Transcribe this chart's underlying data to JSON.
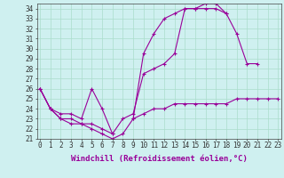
{
  "xlabel": "Windchill (Refroidissement éolien,°C)",
  "background_color": "#cff0f0",
  "grid_color": "#aaddcc",
  "line_color": "#990099",
  "x_ticks": [
    0,
    1,
    2,
    3,
    4,
    5,
    6,
    7,
    8,
    9,
    10,
    11,
    12,
    13,
    14,
    15,
    16,
    17,
    18,
    19,
    20,
    21,
    22,
    23
  ],
  "ylim": [
    21,
    34.5
  ],
  "xlim": [
    -0.3,
    23.3
  ],
  "series": [
    [
      26.0,
      24.0,
      23.0,
      22.5,
      22.5,
      22.0,
      21.5,
      21.0,
      21.5,
      23.0,
      29.5,
      31.5,
      33.0,
      33.5,
      34.0,
      34.0,
      34.0,
      34.0,
      33.5,
      31.5,
      28.5,
      28.5,
      null,
      null
    ],
    [
      26.0,
      24.0,
      23.0,
      23.0,
      22.5,
      22.5,
      22.0,
      21.5,
      23.0,
      23.5,
      27.5,
      28.0,
      28.5,
      29.5,
      34.0,
      34.0,
      34.5,
      34.5,
      33.5,
      null,
      null,
      null,
      null,
      null
    ],
    [
      26.0,
      24.0,
      23.5,
      23.5,
      23.0,
      26.0,
      24.0,
      21.5,
      null,
      null,
      null,
      null,
      null,
      null,
      null,
      null,
      null,
      null,
      null,
      null,
      null,
      null,
      null,
      null
    ],
    [
      null,
      null,
      null,
      null,
      null,
      null,
      null,
      null,
      null,
      23.0,
      23.5,
      24.0,
      24.0,
      24.5,
      24.5,
      24.5,
      24.5,
      24.5,
      24.5,
      25.0,
      25.0,
      25.0,
      25.0,
      25.0
    ]
  ],
  "yticks": [
    21,
    22,
    23,
    24,
    25,
    26,
    27,
    28,
    29,
    30,
    31,
    32,
    33,
    34
  ],
  "tick_fontsize": 5.5,
  "xlabel_fontsize": 6.5,
  "marker": "+"
}
